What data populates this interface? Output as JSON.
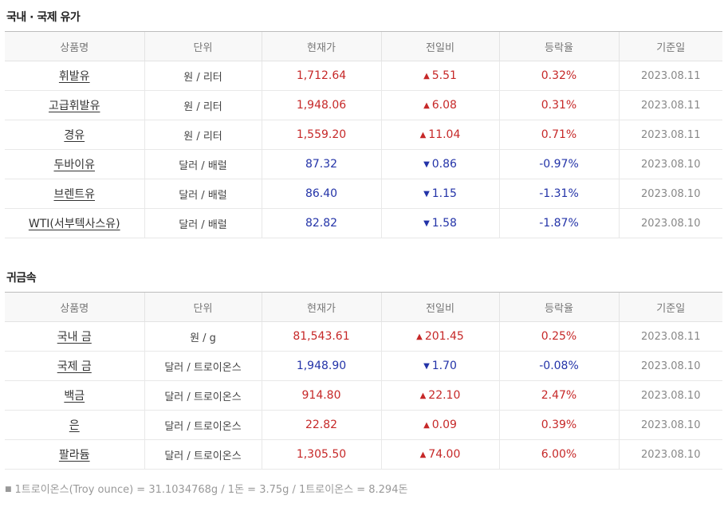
{
  "oil": {
    "title": "국내 · 국제 유가",
    "headers": [
      "상품명",
      "단위",
      "현재가",
      "전일비",
      "등락율",
      "기준일"
    ],
    "rows": [
      {
        "name": "휘발유",
        "unit": "원 / 리터",
        "price": "1,712.64",
        "change": "5.51",
        "rate": "0.32%",
        "date": "2023.08.11",
        "dir": "up"
      },
      {
        "name": "고급휘발유",
        "unit": "원 / 리터",
        "price": "1,948.06",
        "change": "6.08",
        "rate": "0.31%",
        "date": "2023.08.11",
        "dir": "up"
      },
      {
        "name": "경유",
        "unit": "원 / 리터",
        "price": "1,559.20",
        "change": "11.04",
        "rate": "0.71%",
        "date": "2023.08.11",
        "dir": "up"
      },
      {
        "name": "두바이유",
        "unit": "달러 / 배럴",
        "price": "87.32",
        "change": "0.86",
        "rate": "-0.97%",
        "date": "2023.08.10",
        "dir": "down"
      },
      {
        "name": "브렌트유",
        "unit": "달러 / 배럴",
        "price": "86.40",
        "change": "1.15",
        "rate": "-1.31%",
        "date": "2023.08.10",
        "dir": "down"
      },
      {
        "name": "WTI(서부텍사스유)",
        "unit": "달러 / 배럴",
        "price": "82.82",
        "change": "1.58",
        "rate": "-1.87%",
        "date": "2023.08.10",
        "dir": "down"
      }
    ]
  },
  "metal": {
    "title": "귀금속",
    "headers": [
      "상품명",
      "단위",
      "현재가",
      "전일비",
      "등락율",
      "기준일"
    ],
    "rows": [
      {
        "name": "국내 금",
        "unit": "원 / g",
        "price": "81,543.61",
        "change": "201.45",
        "rate": "0.25%",
        "date": "2023.08.11",
        "dir": "up"
      },
      {
        "name": "국제 금",
        "unit": "달러 / 트로이온스",
        "price": "1,948.90",
        "change": "1.70",
        "rate": "-0.08%",
        "date": "2023.08.10",
        "dir": "down"
      },
      {
        "name": "백금",
        "unit": "달러 / 트로이온스",
        "price": "914.80",
        "change": "22.10",
        "rate": "2.47%",
        "date": "2023.08.10",
        "dir": "up"
      },
      {
        "name": "은",
        "unit": "달러 / 트로이온스",
        "price": "22.82",
        "change": "0.09",
        "rate": "0.39%",
        "date": "2023.08.10",
        "dir": "up"
      },
      {
        "name": "팔라듐",
        "unit": "달러 / 트로이온스",
        "price": "1,305.50",
        "change": "74.00",
        "rate": "6.00%",
        "date": "2023.08.10",
        "dir": "up"
      }
    ]
  },
  "arrows": {
    "up": "▲",
    "down": "▼"
  },
  "colors": {
    "up": "#c62828",
    "down": "#2333a8"
  },
  "footnote": "1트로이온스(Troy ounce) = 31.1034768g / 1돈 = 3.75g / 1트로이온스 = 8.294돈"
}
